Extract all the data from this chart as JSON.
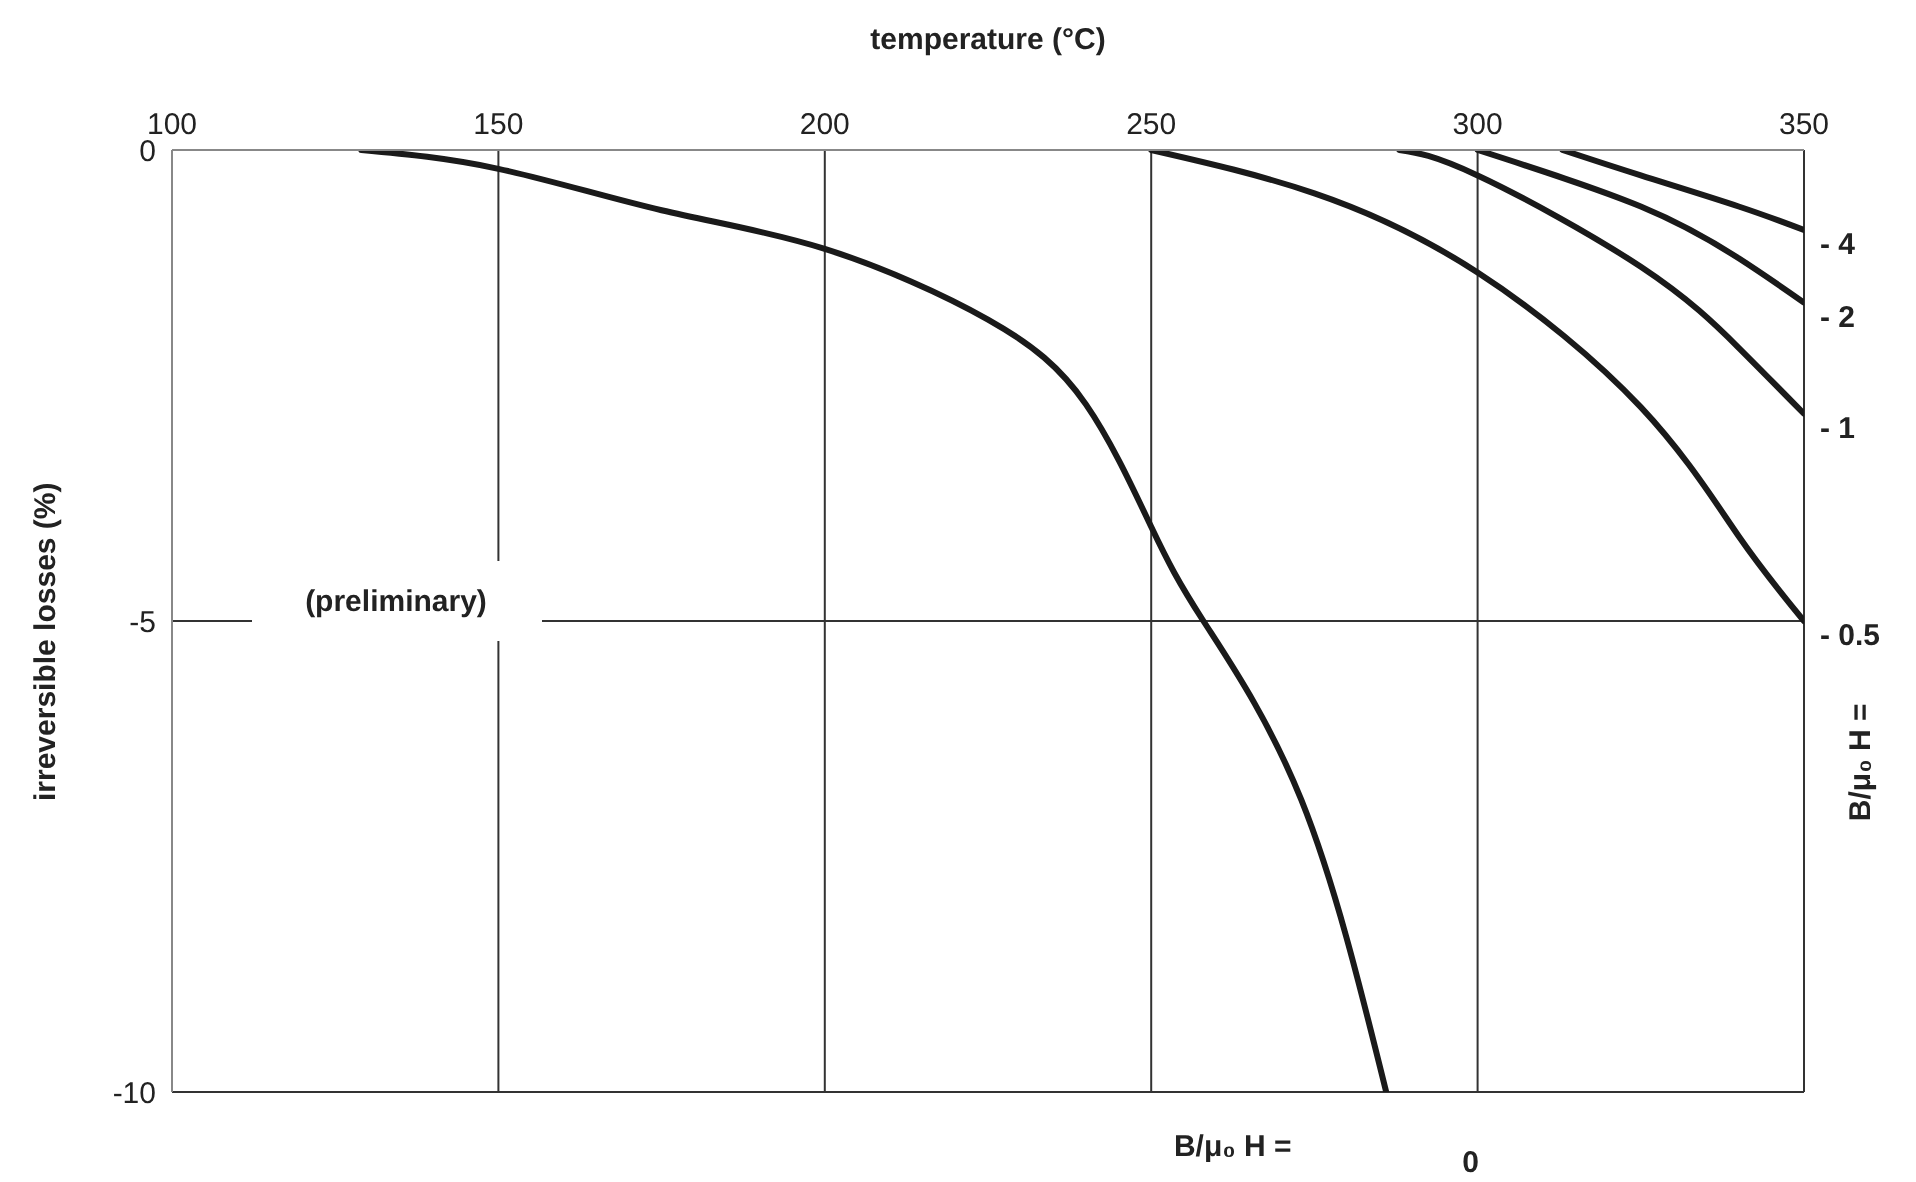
{
  "chart_data": {
    "type": "line",
    "xlabel": "temperature (°C)",
    "ylabel": "irreversible losses  (%)",
    "xlim": [
      100,
      350
    ],
    "xticks": [
      100,
      150,
      200,
      250,
      300,
      350
    ],
    "ylim": [
      -10,
      0
    ],
    "yticks": [
      0,
      -5,
      -10
    ],
    "grid": true,
    "marker": "none",
    "line_style": "solid",
    "annotations": [
      "(preliminary)",
      "B/μ₀ H  =",
      "B/μ₀ H  ="
    ],
    "series": [
      {
        "name": "- 4",
        "color": "#1a1a1a",
        "x": [
          313,
          325,
          340,
          350
        ],
        "values": [
          0,
          -0.27,
          -0.6,
          -0.85
        ]
      },
      {
        "name": "- 2",
        "color": "#1a1a1a",
        "x": [
          300,
          325,
          340,
          350
        ],
        "values": [
          0,
          -0.6,
          -1.15,
          -1.62
        ]
      },
      {
        "name": "- 1",
        "color": "#1a1a1a",
        "x": [
          288,
          300,
          325,
          340,
          350
        ],
        "values": [
          0,
          -0.27,
          -1.24,
          -2.1,
          -2.8
        ]
      },
      {
        "name": "- 0.5",
        "color": "#1a1a1a",
        "x": [
          250,
          275,
          300,
          325,
          340,
          350
        ],
        "values": [
          0,
          -0.46,
          -1.3,
          -2.73,
          -4.1,
          -5
        ]
      },
      {
        "name": "0",
        "color": "#1a1a1a",
        "x": [
          129,
          150,
          175,
          200,
          225,
          240,
          250,
          258,
          273,
          286
        ],
        "values": [
          0,
          -0.2,
          -0.64,
          -1.05,
          -1.8,
          -2.7,
          -4.0,
          -5,
          -6.9,
          -10
        ]
      }
    ]
  }
}
